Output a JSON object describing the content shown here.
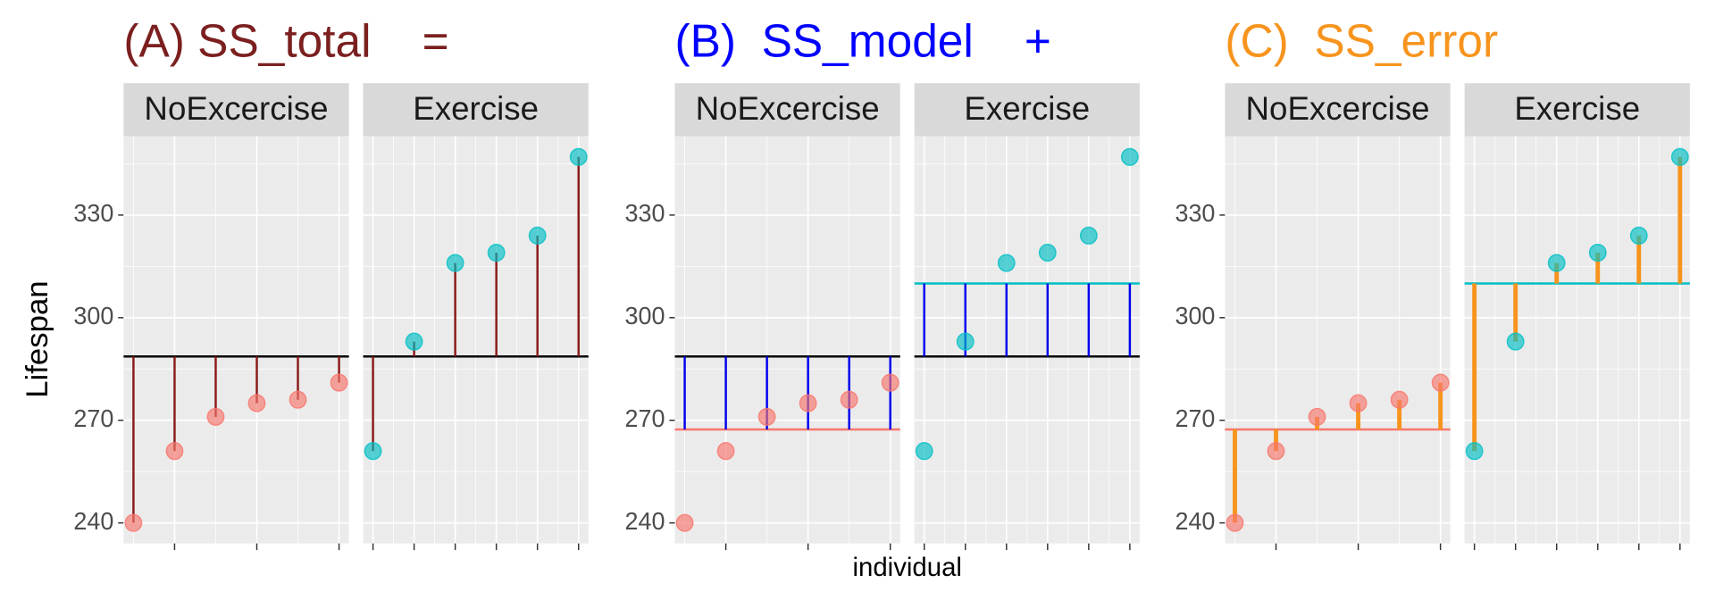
{
  "chart_data": [
    {
      "type": "lollipop",
      "title": "(A) SS_total    =",
      "title_color": "#7b1f1f",
      "ylabel": "Lifespan",
      "ylim": [
        234,
        353
      ],
      "yticks": [
        240,
        270,
        300,
        330
      ],
      "grand_mean": 288.67,
      "grand_mean_color": "#000000",
      "show_grand_mean": true,
      "show_group_mean": false,
      "segments": {
        "color": "#8b1a1a",
        "from": "point",
        "to": "grand_mean",
        "width": 2
      },
      "facets": [
        {
          "name": "NoExcercise",
          "color": "#f8766d",
          "x": [
            1,
            2,
            3,
            4,
            5,
            6
          ],
          "values": [
            240,
            261,
            271,
            275,
            276,
            281
          ],
          "xlim": [
            0.76,
            6.24
          ],
          "xticks": [
            2,
            4,
            6
          ],
          "group_mean": 267.33
        },
        {
          "name": "Exercise",
          "color": "#00bfc4",
          "x": [
            7,
            8,
            9,
            10,
            11,
            12
          ],
          "values": [
            261,
            293,
            316,
            319,
            324,
            347
          ],
          "xlim": [
            6.76,
            12.24
          ],
          "xticks": [
            7,
            8,
            9,
            10,
            11,
            12
          ],
          "group_mean": 310
        }
      ]
    },
    {
      "type": "lollipop",
      "title": "(B)  SS_model    +",
      "title_color": "#0000ff",
      "xlabel": "individual",
      "ylim": [
        234,
        353
      ],
      "yticks": [
        240,
        270,
        300,
        330
      ],
      "grand_mean": 288.67,
      "grand_mean_color": "#000000",
      "show_grand_mean": true,
      "show_group_mean": true,
      "segments": {
        "color": "#0000ee",
        "from": "group_mean",
        "to": "grand_mean",
        "width": 2
      },
      "facets": [
        {
          "name": "NoExcercise",
          "color": "#f8766d",
          "x": [
            1,
            2,
            3,
            4,
            5,
            6
          ],
          "values": [
            240,
            261,
            271,
            275,
            276,
            281
          ],
          "xlim": [
            0.76,
            6.24
          ],
          "xticks": [
            2,
            4,
            6
          ],
          "group_mean": 267.33
        },
        {
          "name": "Exercise",
          "color": "#00bfc4",
          "x": [
            7,
            8,
            9,
            10,
            11,
            12
          ],
          "values": [
            261,
            293,
            316,
            319,
            324,
            347
          ],
          "xlim": [
            6.76,
            12.24
          ],
          "xticks": [
            7,
            8,
            9,
            10,
            11,
            12
          ],
          "group_mean": 310
        }
      ]
    },
    {
      "type": "lollipop",
      "title": "(C)  SS_error",
      "title_color": "#f7941d",
      "ylim": [
        234,
        353
      ],
      "yticks": [
        240,
        270,
        300,
        330
      ],
      "grand_mean": 288.67,
      "grand_mean_color": "#000000",
      "show_grand_mean": false,
      "show_group_mean": true,
      "segments": {
        "color": "#f7941d",
        "from": "point",
        "to": "group_mean",
        "width": 4
      },
      "facets": [
        {
          "name": "NoExcercise",
          "color": "#f8766d",
          "x": [
            1,
            2,
            3,
            4,
            5,
            6
          ],
          "values": [
            240,
            261,
            271,
            275,
            276,
            281
          ],
          "xlim": [
            0.76,
            6.24
          ],
          "xticks": [
            2,
            4,
            6
          ],
          "group_mean": 267.33
        },
        {
          "name": "Exercise",
          "color": "#00bfc4",
          "x": [
            7,
            8,
            9,
            10,
            11,
            12
          ],
          "values": [
            261,
            293,
            316,
            319,
            324,
            347
          ],
          "xlim": [
            6.76,
            12.24
          ],
          "xticks": [
            7,
            8,
            9,
            10,
            11,
            12
          ],
          "group_mean": 310
        }
      ]
    }
  ]
}
